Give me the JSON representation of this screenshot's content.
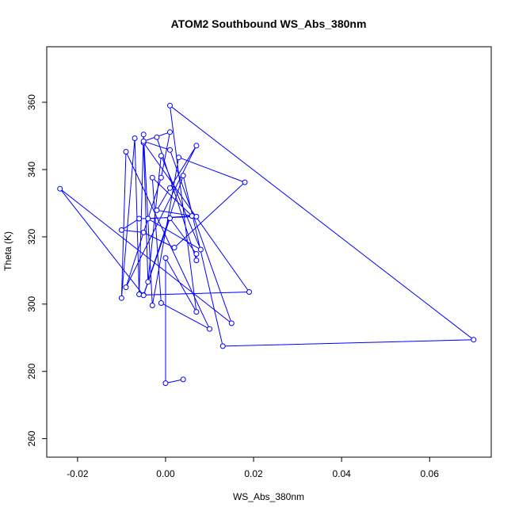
{
  "chart_data": {
    "type": "line",
    "title": "ATOM2 Southbound WS_Abs_380nm",
    "xlabel": "WS_Abs_380nm",
    "ylabel": "Theta (K)",
    "xlim": [
      -0.027,
      0.074
    ],
    "ylim": [
      254.5,
      376.5
    ],
    "x_ticks": [
      -0.02,
      0.0,
      0.02,
      0.04,
      0.06
    ],
    "x_tick_labels": [
      "-0.02",
      "0.00",
      "0.02",
      "0.04",
      "0.06"
    ],
    "y_ticks": [
      260,
      280,
      300,
      320,
      340,
      360
    ],
    "y_tick_labels": [
      "260",
      "280",
      "300",
      "320",
      "340",
      "360"
    ],
    "grid": false,
    "marker": "open-circle",
    "color": "#0000ff",
    "series": [
      {
        "points": [
          [
            0.004,
            277.6
          ],
          [
            0.0,
            276.5
          ],
          [
            0.0,
            313.7
          ],
          [
            0.007,
            297.7
          ],
          [
            0.001,
            359.0
          ],
          [
            0.07,
            289.4
          ],
          [
            0.013,
            287.5
          ],
          [
            0.004,
            338.2
          ],
          [
            -0.005,
            302.7
          ],
          [
            0.019,
            303.6
          ],
          [
            -0.005,
            348.0
          ],
          [
            -0.004,
            306.6
          ],
          [
            -0.001,
            344.1
          ],
          [
            0.008,
            316.2
          ],
          [
            -0.004,
            325.4
          ],
          [
            0.006,
            326.2
          ],
          [
            -0.003,
            337.6
          ],
          [
            -0.001,
            300.3
          ],
          [
            0.01,
            292.6
          ],
          [
            -0.009,
            345.3
          ],
          [
            -0.01,
            301.8
          ],
          [
            -0.007,
            349.3
          ],
          [
            -0.006,
            302.9
          ],
          [
            -0.005,
            350.4
          ],
          [
            -0.003,
            299.6
          ],
          [
            0.003,
            343.6
          ],
          [
            0.018,
            336.2
          ],
          [
            0.002,
            316.8
          ],
          [
            -0.005,
            321.3
          ],
          [
            -0.01,
            322.0
          ],
          [
            -0.006,
            325.4
          ],
          [
            0.007,
            326.0
          ],
          [
            -0.002,
            327.9
          ],
          [
            0.001,
            334.5
          ],
          [
            0.007,
            347.1
          ],
          [
            -0.009,
            305.0
          ],
          [
            -0.001,
            337.6
          ],
          [
            0.001,
            351.1
          ],
          [
            -0.005,
            348.4
          ],
          [
            0.001,
            345.8
          ],
          [
            0.015,
            294.3
          ],
          [
            -0.024,
            334.3
          ],
          [
            -0.005,
            302.6
          ],
          [
            0.001,
            325.5
          ],
          [
            0.007,
            314.9
          ],
          [
            0.007,
            313.0
          ],
          [
            -0.002,
            349.6
          ]
        ]
      }
    ]
  }
}
